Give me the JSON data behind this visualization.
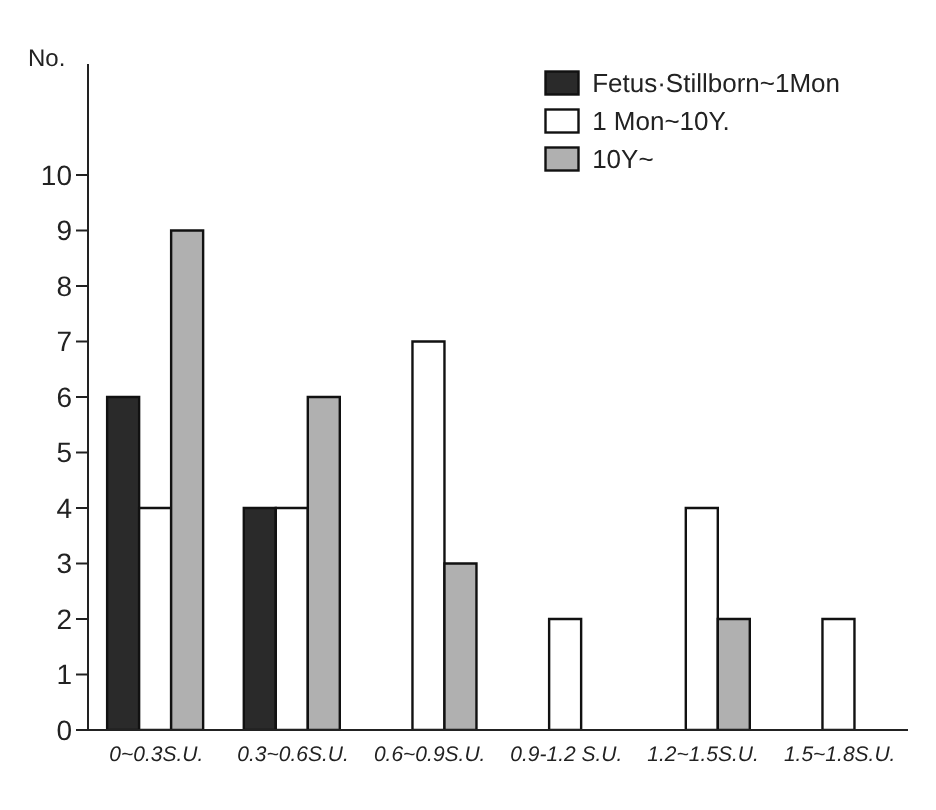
{
  "chart_data": {
    "type": "bar",
    "ylabel": "No.",
    "categories": [
      "0~0.3S.U.",
      "0.3~0.6S.U.",
      "0.6~0.9S.U.",
      "0.9-1.2 S.U.",
      "1.2~1.5S.U.",
      "1.5~1.8S.U."
    ],
    "series": [
      {
        "name": "Fetus·Stillborn~1Mon",
        "color": "#2a2a2a",
        "values": [
          6,
          4,
          null,
          null,
          null,
          null
        ]
      },
      {
        "name": "1 Mon~10Y.",
        "color": "#ffffff",
        "values": [
          4,
          4,
          7,
          2,
          4,
          2
        ]
      },
      {
        "name": "10Y~",
        "color": "#b0b0b0",
        "values": [
          9,
          6,
          3,
          null,
          2,
          null
        ]
      }
    ],
    "ylim": [
      0,
      12
    ],
    "yticks": [
      0,
      1,
      2,
      3,
      4,
      5,
      6,
      7,
      8,
      9,
      10
    ],
    "grid": false,
    "legend": "top right"
  }
}
